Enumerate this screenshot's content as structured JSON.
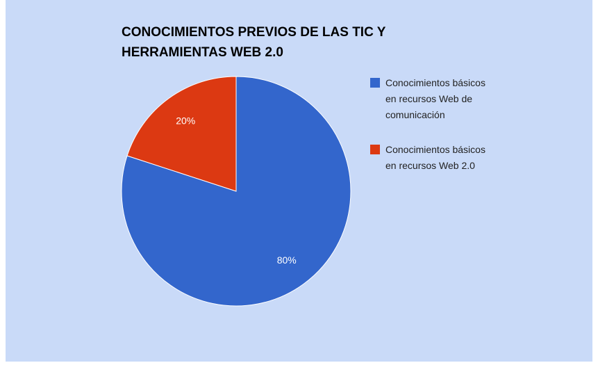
{
  "chart_data": {
    "type": "pie",
    "title": "CONOCIMIENTOS PREVIOS DE LAS TIC Y HERRAMIENTAS WEB 2.0",
    "categories": [
      "Conocimientos básicos en recursos Web de comunicación",
      "Conocimientos básicos en recursos Web 2.0"
    ],
    "values": [
      80,
      20
    ],
    "value_labels": [
      "80%",
      "20%"
    ],
    "colors": [
      "#3366cc",
      "#dc3912"
    ],
    "legend": "right"
  }
}
